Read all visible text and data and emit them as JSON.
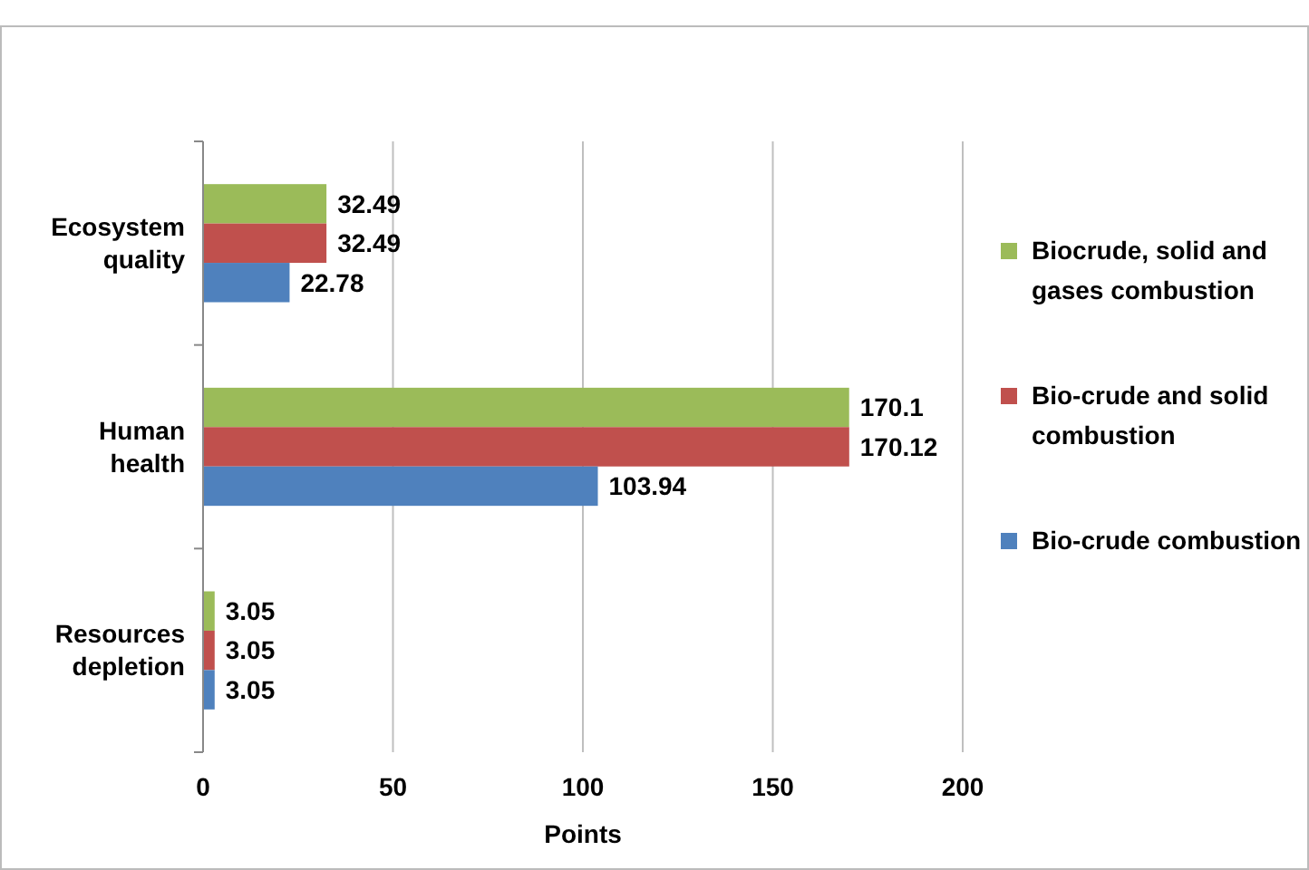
{
  "chart_data": {
    "type": "bar",
    "orientation": "horizontal",
    "xlabel": "Points",
    "categories": [
      "Ecosystem quality",
      "Human health",
      "Resources depletion"
    ],
    "series": [
      {
        "name": "Biocrude, solid and gases combustion",
        "color": "#9bbb59",
        "values": [
          32.49,
          170.1,
          3.05
        ]
      },
      {
        "name": "Bio-crude and solid combustion",
        "color": "#c0504d",
        "values": [
          32.49,
          170.12,
          3.05
        ]
      },
      {
        "name": "Bio-crude combustion",
        "color": "#4f81bd",
        "values": [
          22.78,
          103.94,
          3.05
        ]
      }
    ],
    "xlim": [
      0,
      200
    ],
    "xticks": [
      0,
      50,
      100,
      150,
      200
    ],
    "grid": "x",
    "legend": "right",
    "data_labels": true
  }
}
